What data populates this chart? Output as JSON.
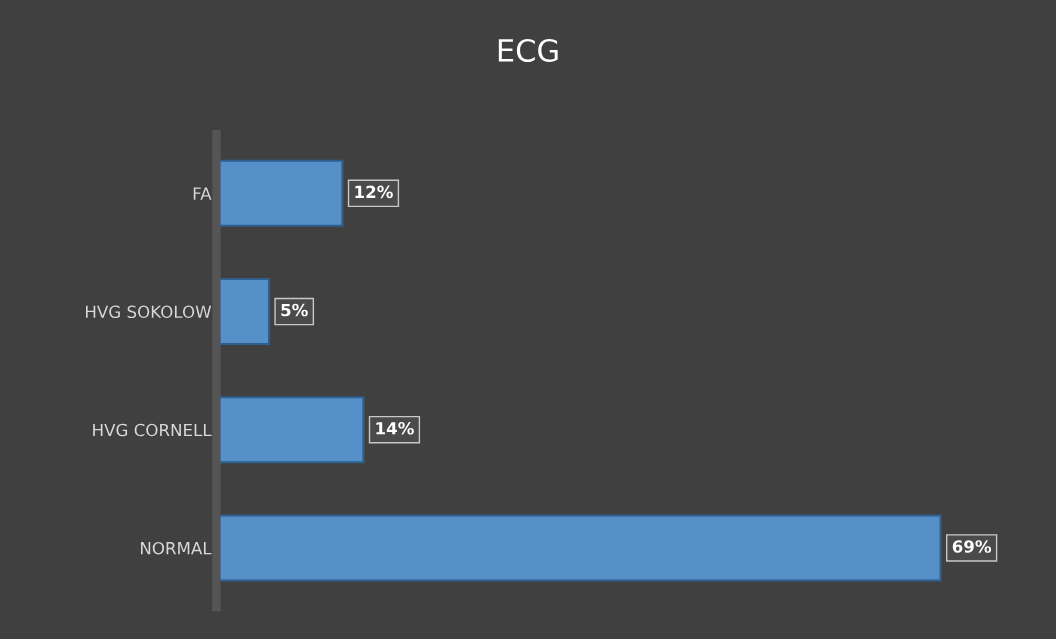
{
  "chart_data": {
    "type": "bar",
    "orientation": "horizontal",
    "title": "ECG",
    "categories": [
      "FA",
      "HVG SOKOLOW",
      "HVG CORNELL",
      "NORMAL"
    ],
    "values": [
      12,
      5,
      14,
      69
    ],
    "value_labels": [
      "12%",
      "5%",
      "14%",
      "69%"
    ],
    "color": "#5590c8",
    "tick_labels": "y",
    "grid": false,
    "legend": false
  }
}
